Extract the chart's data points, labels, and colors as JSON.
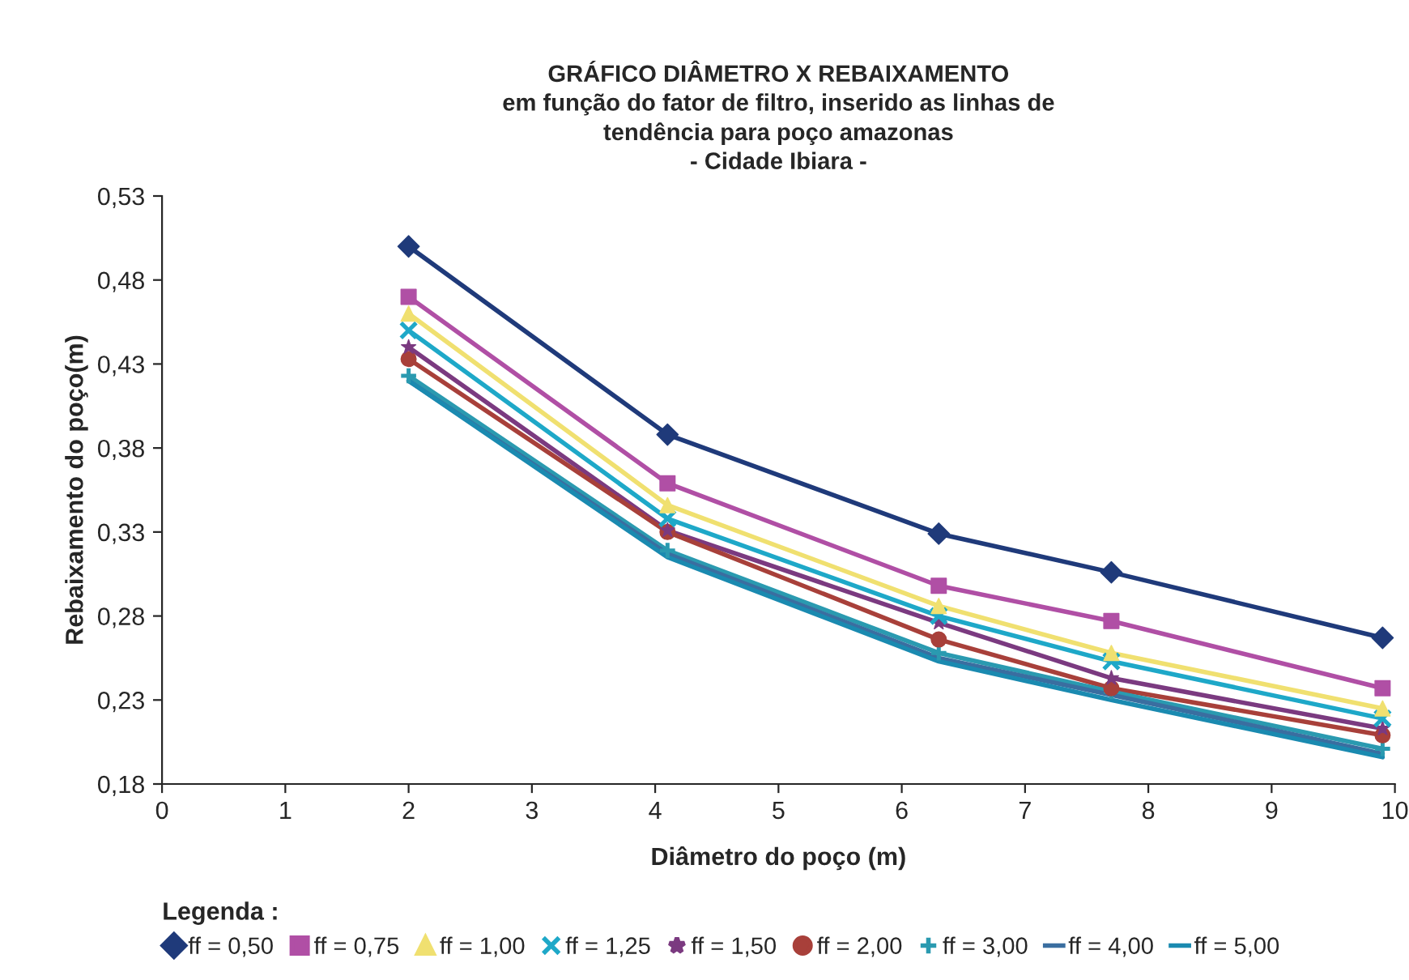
{
  "chart_data": {
    "type": "line",
    "title": "GRÁFICO DIÂMETRO X REBAIXAMENTO\nem função do fator de filtro, inserido as linhas de\ntendência para poço amazonas\n- Cidade Ibiara -",
    "xlabel": "Diâmetro do poço (m)",
    "ylabel": "Rebaixamento do poço(m)",
    "legend_title": "Legenda :",
    "x": [
      2,
      4.1,
      6.3,
      7.7,
      9.9
    ],
    "series": [
      {
        "name": "ff = 0,50",
        "color": "#1f3a7a",
        "marker": "diamond",
        "values": [
          0.5,
          0.388,
          0.329,
          0.306,
          0.267
        ]
      },
      {
        "name": "ff = 0,75",
        "color": "#b04fa5",
        "marker": "square",
        "values": [
          0.47,
          0.359,
          0.298,
          0.277,
          0.237
        ]
      },
      {
        "name": "ff = 1,00",
        "color": "#f0e070",
        "marker": "triangle",
        "values": [
          0.46,
          0.346,
          0.286,
          0.258,
          0.225
        ]
      },
      {
        "name": "ff = 1,25",
        "color": "#1ea8c8",
        "marker": "cross",
        "values": [
          0.45,
          0.338,
          0.28,
          0.253,
          0.219
        ]
      },
      {
        "name": "ff = 1,50",
        "color": "#7b3a80",
        "marker": "star",
        "values": [
          0.44,
          0.331,
          0.276,
          0.243,
          0.213
        ]
      },
      {
        "name": "ff = 2,00",
        "color": "#a8403a",
        "marker": "circle",
        "values": [
          0.433,
          0.33,
          0.266,
          0.237,
          0.209
        ]
      },
      {
        "name": "ff = 3,00",
        "color": "#2a9ab0",
        "marker": "plus",
        "values": [
          0.423,
          0.319,
          0.258,
          0.235,
          0.201
        ]
      },
      {
        "name": "ff = 4,00",
        "color": "#3a6ea0",
        "marker": "none",
        "values": [
          0.42,
          0.317,
          0.255,
          0.233,
          0.198
        ]
      },
      {
        "name": "ff = 5,00",
        "color": "#1a8ab0",
        "marker": "none",
        "values": [
          0.42,
          0.315,
          0.253,
          0.23,
          0.196
        ]
      }
    ],
    "xlim": [
      0,
      10
    ],
    "xticks": [
      0,
      1,
      2,
      3,
      4,
      5,
      6,
      7,
      8,
      9,
      10
    ],
    "ylim": [
      0.18,
      0.53
    ],
    "yticks": [
      {
        "value": 0.18,
        "label": "0,18"
      },
      {
        "value": 0.23,
        "label": "0,23"
      },
      {
        "value": 0.28,
        "label": "0,28"
      },
      {
        "value": 0.33,
        "label": "0,33"
      },
      {
        "value": 0.38,
        "label": "0,38"
      },
      {
        "value": 0.43,
        "label": "0,43"
      },
      {
        "value": 0.48,
        "label": "0,48"
      },
      {
        "value": 0.53,
        "label": "0,53"
      }
    ],
    "grid": false,
    "legend": "bottom",
    "line_style": "solid"
  }
}
